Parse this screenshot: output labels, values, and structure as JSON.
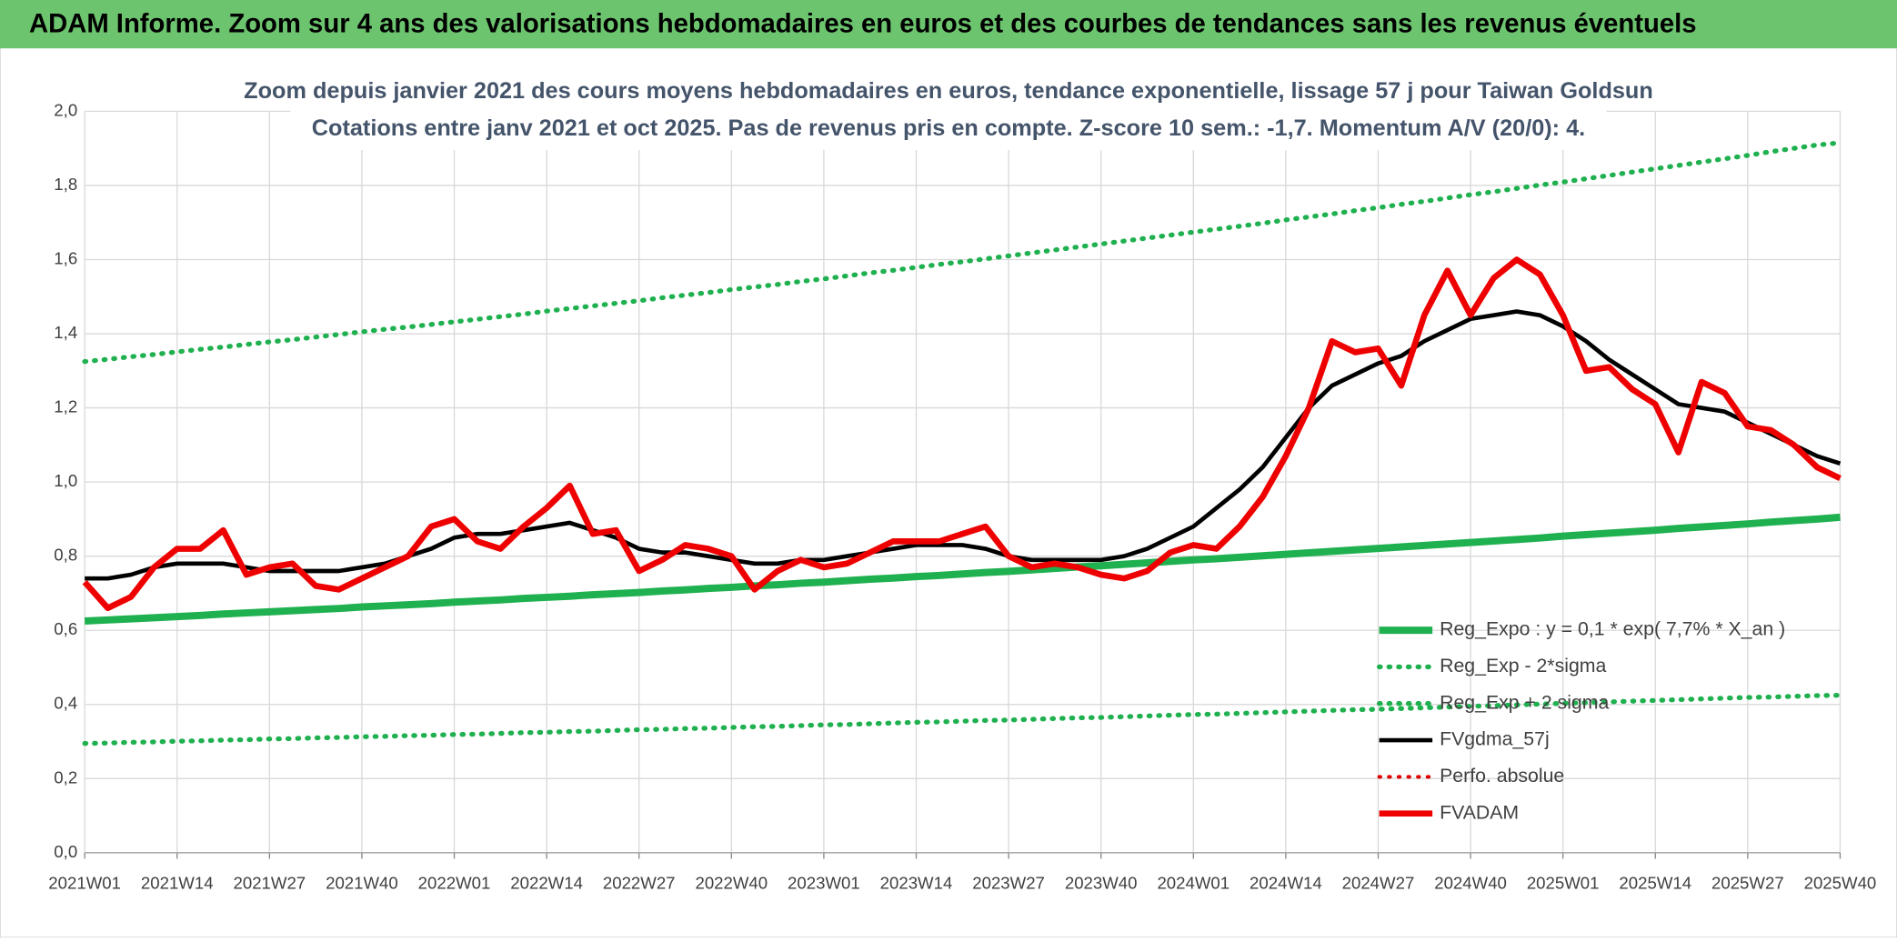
{
  "header": {
    "title": "ADAM Informe. Zoom sur 4 ans des valorisations hebdomadaires en euros et des courbes de tendances sans les revenus éventuels"
  },
  "chart_data": {
    "type": "line",
    "title": "Zoom depuis janvier 2021 des cours moyens hebdomadaires en euros, tendance exponentielle, lissage 57 j pour Taiwan Goldsun",
    "subtitle": "Cotations entre janv 2021 et oct 2025. Pas de revenus pris en compte. Z-score 10 sem.: -1,7. Momentum A/V (20/0): 4.",
    "categories": [
      "2021W01",
      null,
      null,
      null,
      "2021W14",
      null,
      null,
      null,
      "2021W27",
      null,
      null,
      null,
      "2021W40",
      null,
      null,
      null,
      "2022W01",
      null,
      null,
      null,
      "2022W14",
      null,
      null,
      null,
      "2022W27",
      null,
      null,
      null,
      "2022W40",
      null,
      null,
      null,
      "2023W01",
      null,
      null,
      null,
      "2023W14",
      null,
      null,
      null,
      "2023W27",
      null,
      null,
      null,
      "2023W40",
      null,
      null,
      null,
      "2024W01",
      null,
      null,
      null,
      "2024W14",
      null,
      null,
      null,
      "2024W27",
      null,
      null,
      null,
      "2024W40",
      null,
      null,
      null,
      "2025W01",
      null,
      null,
      null,
      "2025W14",
      null,
      null,
      null,
      "2025W27",
      null,
      null,
      null,
      "2025W40"
    ],
    "ylim": [
      0,
      2
    ],
    "yticks": [
      {
        "value": 0,
        "label": "0,0"
      },
      {
        "value": 0.2,
        "label": "0,2"
      },
      {
        "value": 0.4,
        "label": "0,4"
      },
      {
        "value": 0.6,
        "label": "0,6"
      },
      {
        "value": 0.8,
        "label": "0,8"
      },
      {
        "value": 1,
        "label": "1,0"
      },
      {
        "value": 1.2,
        "label": "1,2"
      },
      {
        "value": 1.4,
        "label": "1,4"
      },
      {
        "value": 1.6,
        "label": "1,6"
      },
      {
        "value": 1.8,
        "label": "1,8"
      },
      {
        "value": 2,
        "label": "2,0"
      }
    ],
    "grid": true,
    "legend": "lower right",
    "series": [
      {
        "name": "Reg_Expo : y = 0,1 * exp( 7,7% *  X_an )",
        "color": "#1fb04f",
        "style": "solid",
        "values": [
          0.625,
          0.628,
          0.631,
          0.634,
          0.637,
          0.64,
          0.644,
          0.647,
          0.65,
          0.653,
          0.656,
          0.659,
          0.663,
          0.666,
          0.669,
          0.672,
          0.676,
          0.679,
          0.682,
          0.686,
          0.689,
          0.692,
          0.696,
          0.699,
          0.702,
          0.706,
          0.709,
          0.713,
          0.716,
          0.72,
          0.723,
          0.727,
          0.73,
          0.734,
          0.738,
          0.741,
          0.745,
          0.748,
          0.752,
          0.756,
          0.759,
          0.763,
          0.767,
          0.771,
          0.774,
          0.778,
          0.782,
          0.786,
          0.79,
          0.793,
          0.797,
          0.801,
          0.805,
          0.809,
          0.813,
          0.817,
          0.821,
          0.825,
          0.829,
          0.833,
          0.837,
          0.841,
          0.845,
          0.849,
          0.854,
          0.858,
          0.862,
          0.866,
          0.87,
          0.875,
          0.879,
          0.883,
          0.887,
          0.892,
          0.896,
          0.9,
          0.905
        ]
      },
      {
        "name": "Reg_Exp - 2*sigma",
        "color": "#1fb04f",
        "style": "dotted",
        "values": [
          0.295,
          0.296,
          0.298,
          0.299,
          0.301,
          0.302,
          0.304,
          0.305,
          0.307,
          0.308,
          0.31,
          0.311,
          0.313,
          0.314,
          0.316,
          0.317,
          0.319,
          0.32,
          0.322,
          0.324,
          0.325,
          0.327,
          0.328,
          0.33,
          0.332,
          0.333,
          0.335,
          0.336,
          0.338,
          0.34,
          0.341,
          0.343,
          0.345,
          0.346,
          0.348,
          0.35,
          0.352,
          0.353,
          0.355,
          0.357,
          0.358,
          0.36,
          0.362,
          0.364,
          0.365,
          0.367,
          0.369,
          0.371,
          0.373,
          0.374,
          0.376,
          0.378,
          0.38,
          0.382,
          0.384,
          0.386,
          0.387,
          0.389,
          0.391,
          0.393,
          0.395,
          0.397,
          0.399,
          0.401,
          0.403,
          0.405,
          0.407,
          0.409,
          0.411,
          0.413,
          0.415,
          0.417,
          0.419,
          0.42,
          0.422,
          0.424,
          0.425
        ]
      },
      {
        "name": "Reg_Exp + 2 sigma",
        "color": "#1fb04f",
        "style": "dotted",
        "values": [
          1.325,
          1.331,
          1.338,
          1.344,
          1.351,
          1.358,
          1.364,
          1.371,
          1.378,
          1.384,
          1.391,
          1.398,
          1.405,
          1.412,
          1.418,
          1.425,
          1.432,
          1.439,
          1.446,
          1.453,
          1.461,
          1.468,
          1.475,
          1.482,
          1.489,
          1.497,
          1.504,
          1.511,
          1.519,
          1.526,
          1.533,
          1.541,
          1.548,
          1.556,
          1.564,
          1.571,
          1.579,
          1.587,
          1.594,
          1.602,
          1.61,
          1.618,
          1.626,
          1.634,
          1.642,
          1.65,
          1.658,
          1.666,
          1.674,
          1.682,
          1.69,
          1.698,
          1.707,
          1.715,
          1.723,
          1.732,
          1.74,
          1.749,
          1.757,
          1.766,
          1.775,
          1.783,
          1.792,
          1.801,
          1.809,
          1.818,
          1.827,
          1.836,
          1.845,
          1.854,
          1.863,
          1.872,
          1.881,
          1.891,
          1.9,
          1.909,
          1.915
        ]
      },
      {
        "name": "FVgdma_57j",
        "color": "#000000",
        "style": "solid",
        "values": [
          0.74,
          0.74,
          0.75,
          0.77,
          0.78,
          0.78,
          0.78,
          0.77,
          0.76,
          0.76,
          0.76,
          0.76,
          0.77,
          0.78,
          0.8,
          0.82,
          0.85,
          0.86,
          0.86,
          0.87,
          0.88,
          0.89,
          0.87,
          0.85,
          0.82,
          0.81,
          0.81,
          0.8,
          0.79,
          0.78,
          0.78,
          0.79,
          0.79,
          0.8,
          0.81,
          0.82,
          0.83,
          0.83,
          0.83,
          0.82,
          0.8,
          0.79,
          0.79,
          0.79,
          0.79,
          0.8,
          0.82,
          0.85,
          0.88,
          0.93,
          0.98,
          1.04,
          1.12,
          1.2,
          1.26,
          1.29,
          1.32,
          1.34,
          1.38,
          1.41,
          1.44,
          1.45,
          1.46,
          1.45,
          1.42,
          1.38,
          1.33,
          1.29,
          1.25,
          1.21,
          1.2,
          1.19,
          1.16,
          1.13,
          1.1,
          1.07,
          1.05
        ]
      },
      {
        "name": "Perfo. absolue",
        "color": "#e00000",
        "style": "dotted",
        "values": [
          null,
          null,
          null,
          null,
          null,
          null,
          null,
          null,
          null,
          null,
          null,
          null,
          null,
          null,
          null,
          null,
          null,
          null,
          null,
          null,
          null,
          null,
          null,
          null,
          null,
          null,
          null,
          null,
          null,
          null,
          null,
          null,
          null,
          null,
          null,
          null,
          null,
          null,
          null,
          null,
          null,
          null,
          null,
          null,
          null,
          null,
          null,
          null,
          null,
          null,
          null,
          null,
          null,
          null,
          null,
          null,
          null,
          null,
          null,
          null,
          null,
          null,
          null,
          null,
          null,
          null,
          null,
          null,
          null,
          null,
          null,
          null,
          null,
          null,
          null,
          null,
          null
        ]
      },
      {
        "name": "FVADAM",
        "color": "#ee0000",
        "style": "solid",
        "values": [
          0.73,
          0.66,
          0.69,
          0.77,
          0.82,
          0.82,
          0.87,
          0.75,
          0.77,
          0.78,
          0.72,
          0.71,
          0.74,
          0.77,
          0.8,
          0.88,
          0.9,
          0.84,
          0.82,
          0.88,
          0.93,
          0.99,
          0.86,
          0.87,
          0.76,
          0.79,
          0.83,
          0.82,
          0.8,
          0.71,
          0.76,
          0.79,
          0.77,
          0.78,
          0.81,
          0.84,
          0.84,
          0.84,
          0.86,
          0.88,
          0.8,
          0.77,
          0.78,
          0.77,
          0.75,
          0.74,
          0.76,
          0.81,
          0.83,
          0.82,
          0.88,
          0.96,
          1.07,
          1.2,
          1.38,
          1.35,
          1.36,
          1.26,
          1.45,
          1.57,
          1.45,
          1.55,
          1.6,
          1.56,
          1.45,
          1.3,
          1.31,
          1.25,
          1.21,
          1.08,
          1.27,
          1.24,
          1.15,
          1.14,
          1.1,
          1.04,
          1.01
        ]
      }
    ]
  }
}
